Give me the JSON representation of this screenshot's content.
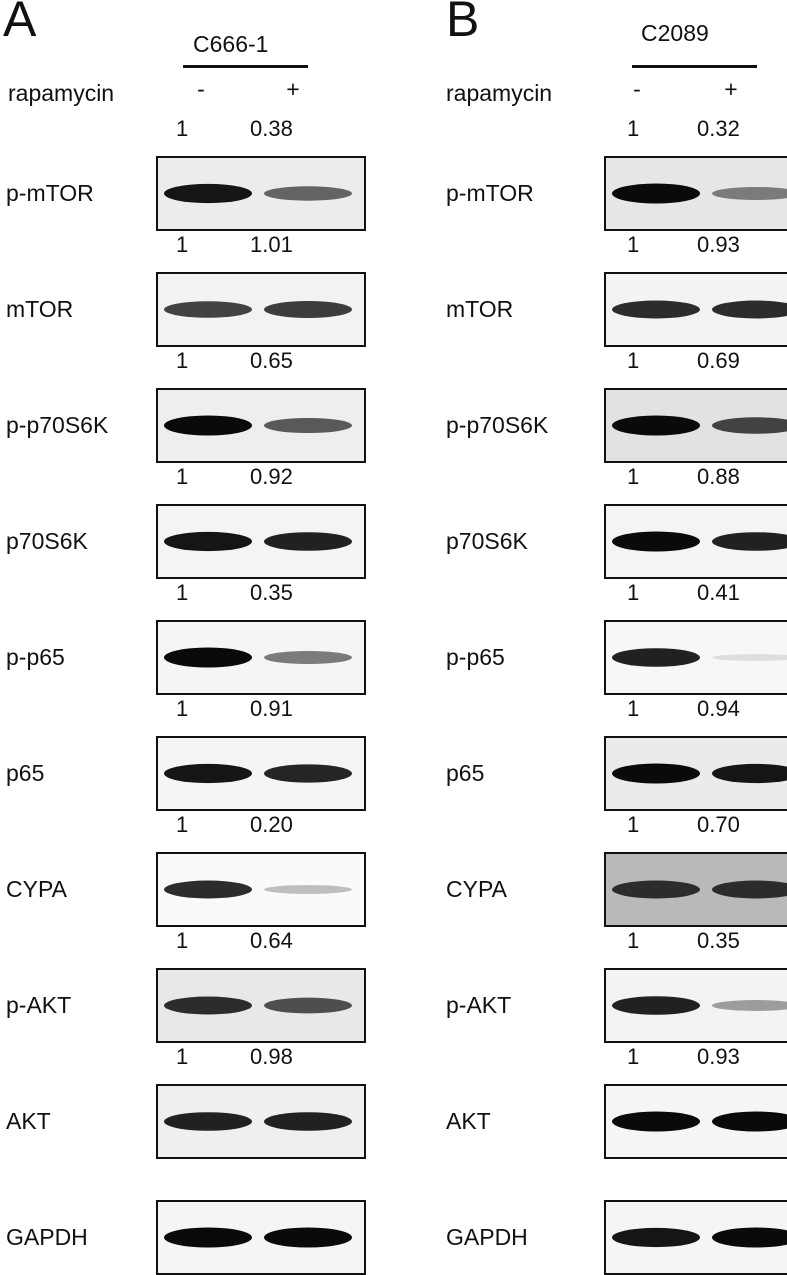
{
  "treatment_label": "rapamycin",
  "signs": [
    "-",
    "+"
  ],
  "panels": [
    {
      "letter": "A",
      "cell_line": "C666-1",
      "rows": [
        {
          "protein": "p-mTOR",
          "ratio_left": "1",
          "ratio_right": "0.38",
          "band_left": 0.95,
          "band_right": 0.6,
          "bg": "#ececec"
        },
        {
          "protein": "mTOR",
          "ratio_left": "1",
          "ratio_right": "1.01",
          "band_left": 0.75,
          "band_right": 0.78,
          "bg": "#f2f2f2"
        },
        {
          "protein": "p-p70S6K",
          "ratio_left": "1",
          "ratio_right": "0.65",
          "band_left": 1.0,
          "band_right": 0.65,
          "bg": "#eeeeee"
        },
        {
          "protein": "p70S6K",
          "ratio_left": "1",
          "ratio_right": "0.92",
          "band_left": 0.95,
          "band_right": 0.9,
          "bg": "#f4f4f4"
        },
        {
          "protein": "p-p65",
          "ratio_left": "1",
          "ratio_right": "0.35",
          "band_left": 1.0,
          "band_right": 0.5,
          "bg": "#f5f5f5"
        },
        {
          "protein": "p65",
          "ratio_left": "1",
          "ratio_right": "0.91",
          "band_left": 0.95,
          "band_right": 0.88,
          "bg": "#f5f5f5"
        },
        {
          "protein": "CYPA",
          "ratio_left": "1",
          "ratio_right": "0.20",
          "band_left": 0.85,
          "band_right": 0.2,
          "bg": "#fafafa"
        },
        {
          "protein": "p-AKT",
          "ratio_left": "1",
          "ratio_right": "0.64",
          "band_left": 0.85,
          "band_right": 0.7,
          "bg": "#e8e8e8"
        },
        {
          "protein": "AKT",
          "ratio_left": "1",
          "ratio_right": "0.98",
          "band_left": 0.9,
          "band_right": 0.9,
          "bg": "#efefef"
        },
        {
          "protein": "GAPDH",
          "ratio_left": null,
          "ratio_right": null,
          "band_left": 1.0,
          "band_right": 1.0,
          "bg": "#f5f5f5"
        }
      ]
    },
    {
      "letter": "B",
      "cell_line": "C2089",
      "rows": [
        {
          "protein": "p-mTOR",
          "ratio_left": "1",
          "ratio_right": "0.32",
          "band_left": 1.0,
          "band_right": 0.5,
          "bg": "#e6e6e6"
        },
        {
          "protein": "mTOR",
          "ratio_left": "1",
          "ratio_right": "0.93",
          "band_left": 0.85,
          "band_right": 0.85,
          "bg": "#f3f3f3"
        },
        {
          "protein": "p-p70S6K",
          "ratio_left": "1",
          "ratio_right": "0.69",
          "band_left": 1.0,
          "band_right": 0.75,
          "bg": "#e2e2e2"
        },
        {
          "protein": "p70S6K",
          "ratio_left": "1",
          "ratio_right": "0.88",
          "band_left": 1.0,
          "band_right": 0.9,
          "bg": "#f4f4f4"
        },
        {
          "protein": "p-p65",
          "ratio_left": "1",
          "ratio_right": "0.41",
          "band_left": 0.9,
          "band_right": 0.06,
          "bg": "#f7f7f7"
        },
        {
          "protein": "p65",
          "ratio_left": "1",
          "ratio_right": "0.94",
          "band_left": 1.0,
          "band_right": 0.95,
          "bg": "#ebebeb"
        },
        {
          "protein": "CYPA",
          "ratio_left": "1",
          "ratio_right": "0.70",
          "band_left": 0.85,
          "band_right": 0.85,
          "bg": "#b9b9b9"
        },
        {
          "protein": "p-AKT",
          "ratio_left": "1",
          "ratio_right": "0.35",
          "band_left": 0.9,
          "band_right": 0.35,
          "bg": "#f3f3f3"
        },
        {
          "protein": "AKT",
          "ratio_left": "1",
          "ratio_right": "0.93",
          "band_left": 1.0,
          "band_right": 1.0,
          "bg": "#f5f5f5"
        },
        {
          "protein": "GAPDH",
          "ratio_left": null,
          "ratio_right": null,
          "band_left": 0.95,
          "band_right": 1.0,
          "bg": "#f5f5f5"
        }
      ]
    }
  ]
}
